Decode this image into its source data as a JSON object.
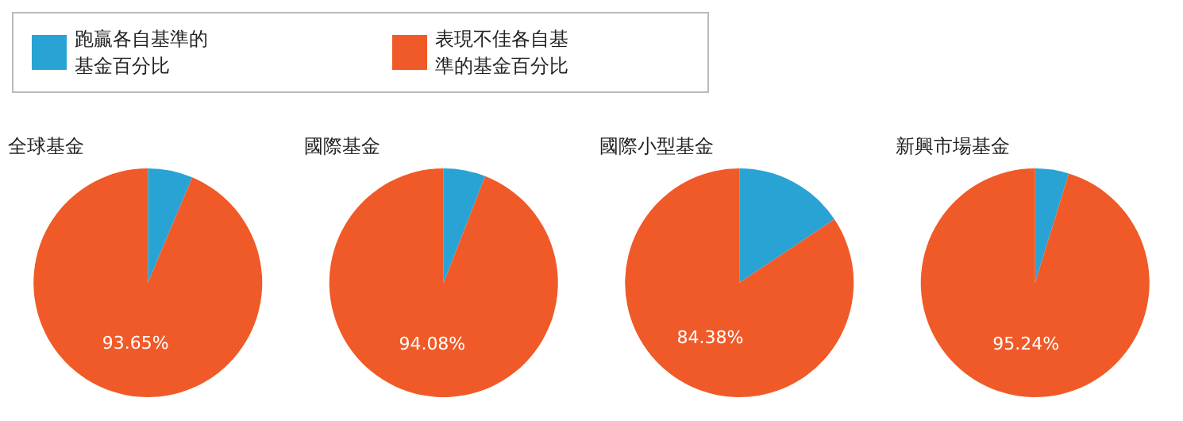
{
  "chart_data": {
    "type": "pie",
    "categories": [
      "跑贏各自基準的基金百分比",
      "表現不佳各自基準的基金百分比"
    ],
    "colors": [
      "#29a3d4",
      "#f05a28"
    ],
    "legend": "top left",
    "series": [
      {
        "name": "全球基金",
        "values": [
          6.35,
          93.65
        ],
        "value_labels": [
          null,
          "93.65%"
        ]
      },
      {
        "name": "國際基金",
        "values": [
          5.92,
          94.08
        ],
        "value_labels": [
          null,
          "94.08%"
        ]
      },
      {
        "name": "國際小型基金",
        "values": [
          15.62,
          84.38
        ],
        "value_labels": [
          null,
          "84.38%"
        ]
      },
      {
        "name": "新興市場基金",
        "values": [
          4.76,
          95.24
        ],
        "value_labels": [
          null,
          "95.24%"
        ]
      }
    ]
  }
}
